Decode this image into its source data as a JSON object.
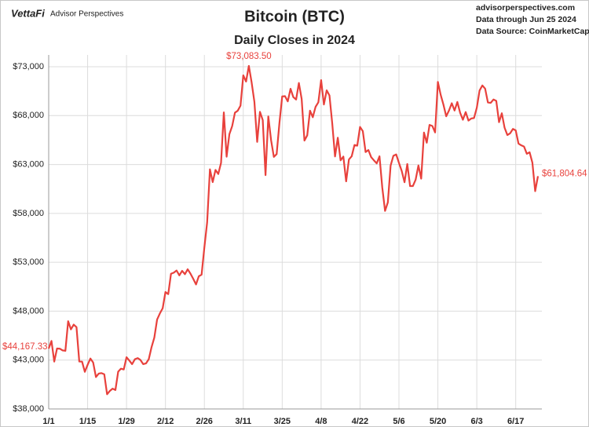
{
  "chart_data": {
    "type": "line",
    "title": "Bitcoin (BTC)",
    "subtitle": "Daily Closes in 2024",
    "logo": "VettaFi",
    "brand": "Advisor Perspectives",
    "source_lines": [
      "advisorperspectives.com",
      "Data through Jun 25 2024",
      "Data Source: CoinMarketCap"
    ],
    "color": "#e8413c",
    "grid": true,
    "ylim": [
      38000,
      73000
    ],
    "yticks": [
      {
        "value": 38000,
        "label": "$38,000"
      },
      {
        "value": 43000,
        "label": "$43,000"
      },
      {
        "value": 48000,
        "label": "$48,000"
      },
      {
        "value": 53000,
        "label": "$53,000"
      },
      {
        "value": 58000,
        "label": "$58,000"
      },
      {
        "value": 63000,
        "label": "$63,000"
      },
      {
        "value": 68000,
        "label": "$68,000"
      },
      {
        "value": 73000,
        "label": "$73,000"
      }
    ],
    "categories": [
      "1/1",
      null,
      null,
      null,
      null,
      null,
      null,
      null,
      null,
      null,
      null,
      null,
      null,
      null,
      "1/15",
      null,
      null,
      null,
      null,
      null,
      null,
      null,
      null,
      null,
      null,
      null,
      null,
      null,
      "1/29",
      null,
      null,
      null,
      null,
      null,
      null,
      null,
      null,
      null,
      null,
      null,
      null,
      null,
      "2/12",
      null,
      null,
      null,
      null,
      null,
      null,
      null,
      null,
      null,
      null,
      null,
      null,
      null,
      "2/26",
      null,
      null,
      null,
      null,
      null,
      null,
      null,
      null,
      null,
      null,
      null,
      null,
      null,
      "3/11",
      null,
      null,
      null,
      null,
      null,
      null,
      null,
      null,
      null,
      null,
      null,
      null,
      null,
      "3/25",
      null,
      null,
      null,
      null,
      null,
      null,
      null,
      null,
      null,
      null,
      null,
      null,
      null,
      "4/8",
      null,
      null,
      null,
      null,
      null,
      null,
      null,
      null,
      null,
      null,
      null,
      null,
      null,
      "4/22",
      null,
      null,
      null,
      null,
      null,
      null,
      null,
      null,
      null,
      null,
      null,
      null,
      null,
      "5/6",
      null,
      null,
      null,
      null,
      null,
      null,
      null,
      null,
      null,
      null,
      null,
      null,
      null,
      "5/20",
      null,
      null,
      null,
      null,
      null,
      null,
      null,
      null,
      null,
      null,
      null,
      null,
      null,
      "6/3",
      null,
      null,
      null,
      null,
      null,
      null,
      null,
      null,
      null,
      null,
      null,
      null,
      null,
      "6/17",
      null,
      null,
      null,
      null,
      null,
      null,
      null,
      null
    ],
    "values": [
      44167.33,
      44957,
      42848,
      44179,
      44162,
      43989,
      43943,
      46970,
      46139,
      46627,
      46368,
      42853,
      42842,
      41796,
      42511,
      43154,
      42742,
      41262,
      41618,
      41665,
      41545,
      39507,
      39845,
      40077,
      39933,
      41816,
      42120,
      42035,
      43288,
      42952,
      42582,
      43082,
      43200,
      43011,
      42583,
      42658,
      43084,
      44319,
      45301,
      47147,
      47771,
      48293,
      49958,
      49743,
      51826,
      51938,
      52160,
      51663,
      52122,
      51779,
      52284,
      51839,
      51304,
      50731,
      51571,
      51733,
      54522,
      57085,
      62504,
      61198,
      62440,
      62029,
      63167,
      68330,
      63801,
      66106,
      66925,
      68300,
      68498,
      69019,
      72123,
      71481,
      73083.5,
      71396,
      69403,
      65315,
      68390,
      67548,
      61912,
      67913,
      65491,
      63778,
      64062,
      67234,
      69958,
      69987,
      69455,
      70744,
      69892,
      69645,
      71333,
      69702,
      65446,
      65980,
      68508,
      67837,
      68896,
      69362,
      71631,
      69139,
      70587,
      70060,
      67195,
      63821,
      65738,
      63426,
      63811,
      61276,
      63512,
      63843,
      64994,
      64926,
      66837,
      66407,
      64276,
      64481,
      63755,
      63419,
      63113,
      63841,
      60636,
      58254,
      59123,
      62889,
      63892,
      64031,
      63162,
      62334,
      61187,
      63049,
      60792,
      60793,
      61448,
      62901,
      61553,
      66267,
      65231,
      67051,
      66940,
      66278,
      71448,
      70136,
      69122,
      67929,
      68526,
      69265,
      68518,
      69394,
      68296,
      67578,
      68364,
      67491,
      67706,
      67751,
      68804,
      70567,
      71082,
      70757,
      69342,
      69305,
      69647,
      69512,
      67332,
      68241,
      66756,
      66012,
      66191,
      66639,
      66490,
      65140,
      64960,
      64828,
      64096,
      64252,
      63180,
      60277,
      61804.64
    ],
    "value_labels": [
      "$44,167.33",
      null,
      null,
      null,
      null,
      null,
      null,
      null,
      null,
      null,
      null,
      null,
      null,
      null,
      null,
      null,
      null,
      null,
      null,
      null,
      null,
      null,
      null,
      null,
      null,
      null,
      null,
      null,
      null,
      null,
      null,
      null,
      null,
      null,
      null,
      null,
      null,
      null,
      null,
      null,
      null,
      null,
      null,
      null,
      null,
      null,
      null,
      null,
      null,
      null,
      null,
      null,
      null,
      null,
      null,
      null,
      null,
      null,
      null,
      null,
      null,
      null,
      null,
      null,
      null,
      null,
      null,
      null,
      null,
      null,
      null,
      null,
      "$73,083.50",
      null,
      null,
      null,
      null,
      null,
      null,
      null,
      null,
      null,
      null,
      null,
      null,
      null,
      null,
      null,
      null,
      null,
      null,
      null,
      null,
      null,
      null,
      null,
      null,
      null,
      null,
      null,
      null,
      null,
      null,
      null,
      null,
      null,
      null,
      null,
      null,
      null,
      null,
      null,
      null,
      null,
      null,
      null,
      null,
      null,
      null,
      null,
      null,
      null,
      null,
      null,
      null,
      null,
      null,
      null,
      null,
      null,
      null,
      null,
      null,
      null,
      null,
      null,
      null,
      null,
      null,
      null,
      null,
      null,
      null,
      null,
      null,
      null,
      null,
      null,
      null,
      null,
      null,
      null,
      null,
      null,
      null,
      null,
      null,
      null,
      null,
      null,
      null,
      null,
      null,
      null,
      null,
      null,
      null,
      null,
      null,
      null,
      null,
      null,
      null,
      null,
      null,
      null,
      "$61,804.64"
    ]
  }
}
